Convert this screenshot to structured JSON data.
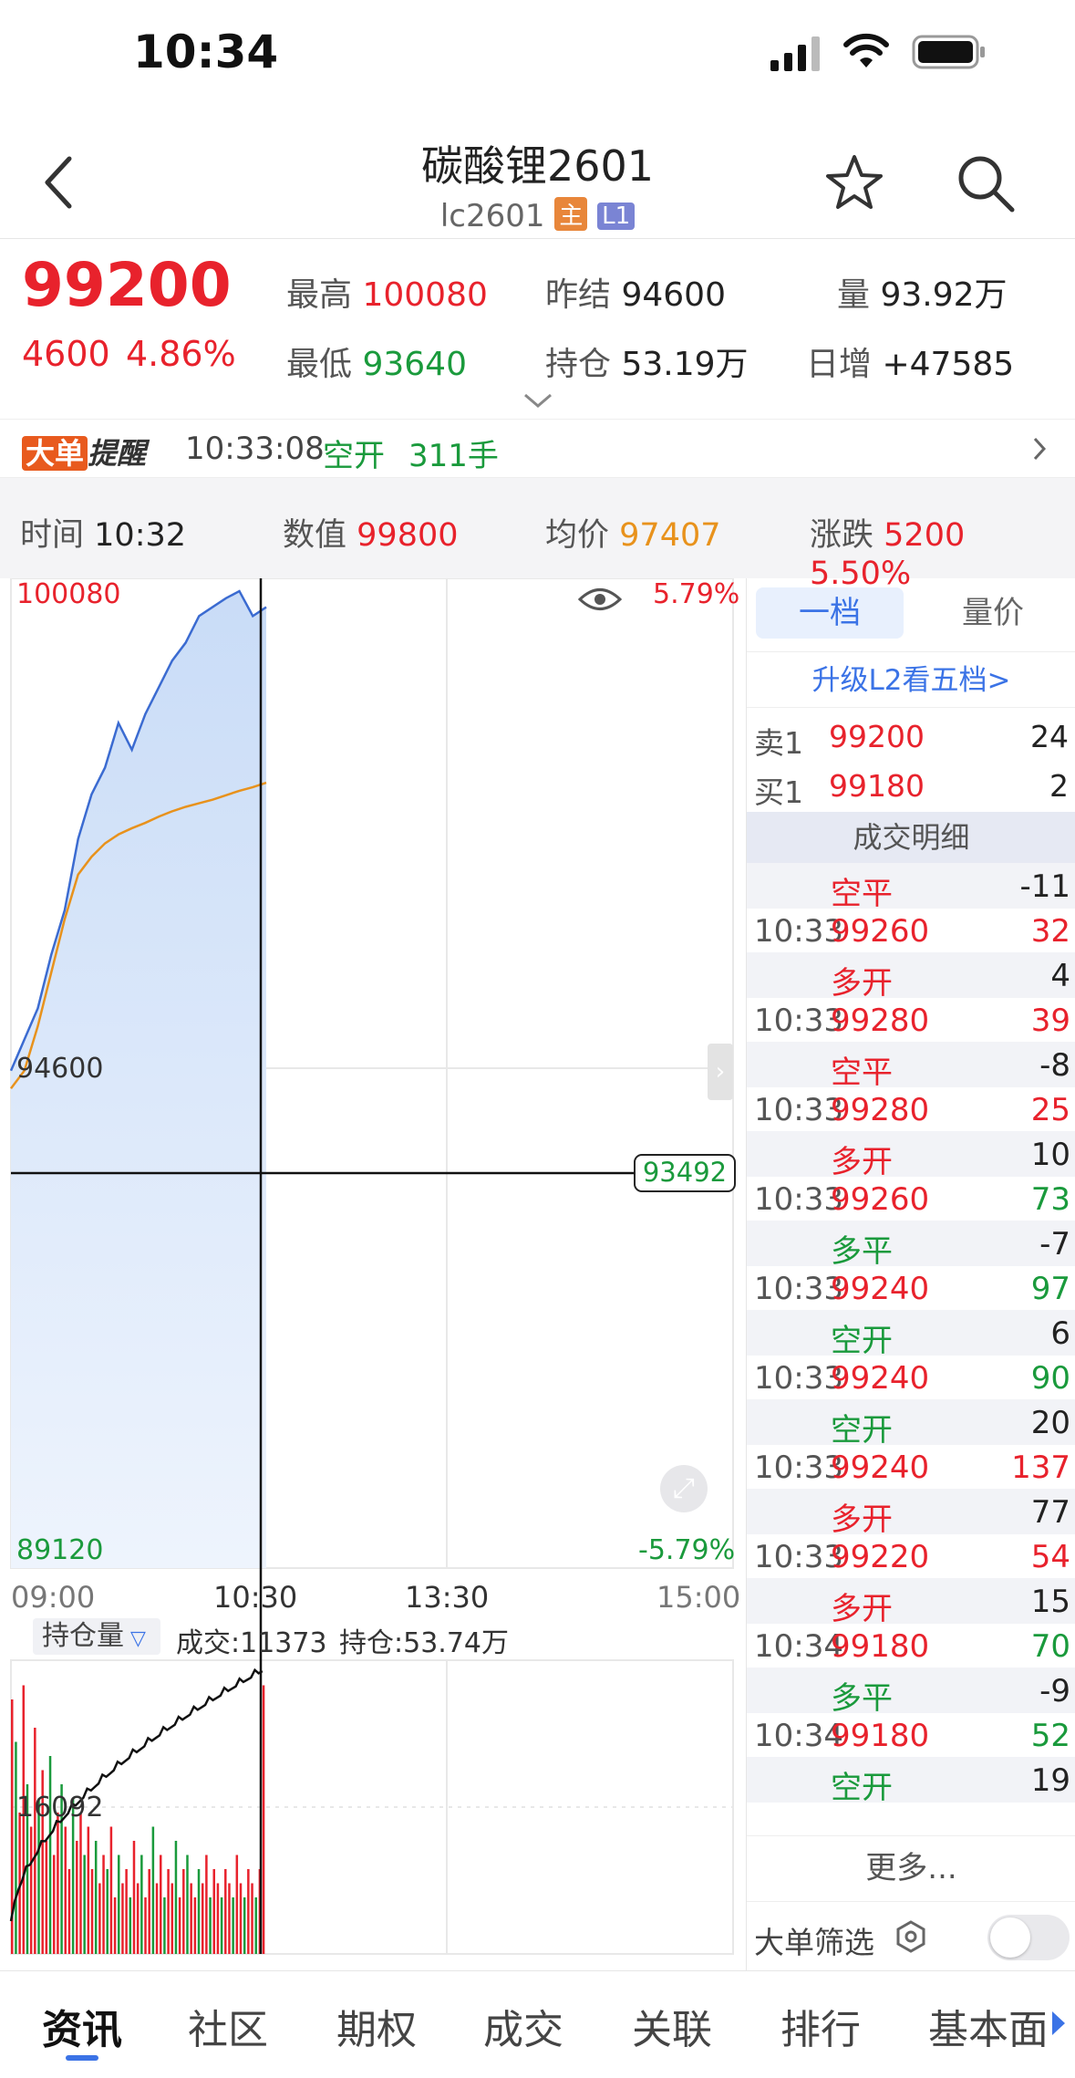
{
  "status": {
    "time": "10:34"
  },
  "nav": {
    "title": "碳酸锂2601",
    "code": "lc2601",
    "badge_main": "主",
    "badge_level": "L1"
  },
  "quote": {
    "price": "99200",
    "change": "4600",
    "change_pct": "4.86%",
    "high_label": "最高",
    "high": "100080",
    "low_label": "最低",
    "low": "93640",
    "prev_settle_label": "昨结",
    "prev_settle": "94600",
    "oi_label": "持仓",
    "oi": "53.19万",
    "vol_label": "量",
    "vol": "93.92万",
    "day_inc_label": "日增",
    "day_inc": "+47585"
  },
  "alert": {
    "tag1": "大单",
    "tag2": "提醒",
    "time": "10:33:08",
    "type": "空开",
    "qty": "311手"
  },
  "cross": {
    "time_label": "时间",
    "time": "10:32",
    "value_label": "数值",
    "value": "99800",
    "avg_label": "均价",
    "avg": "97407",
    "chg_label": "涨跌",
    "chg": "5200",
    "chg_pct": "5.50%"
  },
  "chart": {
    "top_price": "100080",
    "top_pct": "5.79%",
    "mid_price": "94600",
    "bottom_price": "89120",
    "bottom_pct": "-5.79%",
    "cursor_price": "93492",
    "x_labels": [
      "09:00",
      "10:30",
      "13:30",
      "15:00"
    ],
    "sub_selector": "持仓量",
    "sub_deal": "成交:11373",
    "sub_oi": "持仓:53.74万",
    "sub_level": "16092"
  },
  "chart_data": {
    "type": "line",
    "price_series": [
      94700,
      95050,
      95400,
      96000,
      96500,
      97300,
      97800,
      98100,
      98600,
      98300,
      98700,
      99000,
      99300,
      99500,
      99800,
      99900,
      100000,
      100080,
      99800,
      99900
    ],
    "avg_series": [
      94500,
      94700,
      95200,
      95800,
      96400,
      96900,
      97100,
      97250,
      97350,
      97420,
      97480,
      97550,
      97610,
      97660,
      97700,
      97740,
      97790,
      97840,
      97880,
      97930
    ],
    "ylim": [
      89120,
      100080
    ],
    "series": [
      {
        "name": "价格"
      },
      {
        "name": "均价"
      }
    ],
    "sub_type": "bar",
    "volume_bars": [
      0.9,
      0.75,
      0.5,
      0.95,
      0.6,
      0.45,
      0.8,
      0.55,
      0.65,
      0.4,
      0.7,
      0.35,
      0.5,
      0.6,
      0.45,
      0.3,
      0.55,
      0.4,
      0.5,
      0.35,
      0.45,
      0.3,
      0.4,
      0.25,
      0.35,
      0.3,
      0.45,
      0.2,
      0.35,
      0.25,
      0.3,
      0.2,
      0.4,
      0.25,
      0.35,
      0.2,
      0.3,
      0.45,
      0.25,
      0.35,
      0.2,
      0.3,
      0.25,
      0.4,
      0.2,
      0.3,
      0.35,
      0.25,
      0.2,
      0.3,
      0.25,
      0.35,
      0.2,
      0.3,
      0.25,
      0.2,
      0.3,
      0.25,
      0.2,
      0.35,
      0.25,
      0.2,
      0.3,
      0.25,
      0.2,
      0.3,
      0.95
    ]
  },
  "book": {
    "tab1": "一档",
    "tab2": "量价",
    "upgrade": "升级L2看五档>",
    "ask_label": "卖1",
    "ask_price": "99200",
    "ask_qty": "24",
    "bid_label": "买1",
    "bid_price": "99180",
    "bid_qty": "2",
    "detail_title": "成交明细",
    "rows": [
      {
        "time": "",
        "price": "空平",
        "qty": "-11"
      },
      {
        "time": "10:33",
        "price": "99260",
        "qty": "32"
      },
      {
        "time": "",
        "price": "多开",
        "qty": "4"
      },
      {
        "time": "10:33",
        "price": "99280",
        "qty": "39"
      },
      {
        "time": "",
        "price": "空平",
        "qty": "-8"
      },
      {
        "time": "10:33",
        "price": "99280",
        "qty": "25"
      },
      {
        "time": "",
        "price": "多开",
        "qty": "10"
      },
      {
        "time": "10:33",
        "price": "99260",
        "qty": "73"
      },
      {
        "time": "",
        "price": "多平",
        "qty": "-7"
      },
      {
        "time": "10:33",
        "price": "99240",
        "qty": "97"
      },
      {
        "time": "",
        "price": "空开",
        "qty": "6"
      },
      {
        "time": "10:33",
        "price": "99240",
        "qty": "90"
      },
      {
        "time": "",
        "price": "空开",
        "qty": "20"
      },
      {
        "time": "10:33",
        "price": "99240",
        "qty": "137"
      },
      {
        "time": "",
        "price": "多开",
        "qty": "77"
      },
      {
        "time": "10:33",
        "price": "99220",
        "qty": "54"
      },
      {
        "time": "",
        "price": "多开",
        "qty": "15"
      },
      {
        "time": "10:34",
        "price": "99180",
        "qty": "70"
      },
      {
        "time": "",
        "price": "多平",
        "qty": "-9"
      },
      {
        "time": "10:34",
        "price": "99180",
        "qty": "52"
      },
      {
        "time": "",
        "price": "空开",
        "qty": "19"
      }
    ],
    "more": "更多...",
    "filter": "大单筛选"
  },
  "tabs": [
    "资讯",
    "社区",
    "期权",
    "成交",
    "关联",
    "排行",
    "基本面"
  ],
  "colors": {
    "up": "#e8222c",
    "down": "#1a9a3c",
    "avg": "#e8921c",
    "price_line": "#3b6bd1",
    "accent": "#3b73e6"
  }
}
